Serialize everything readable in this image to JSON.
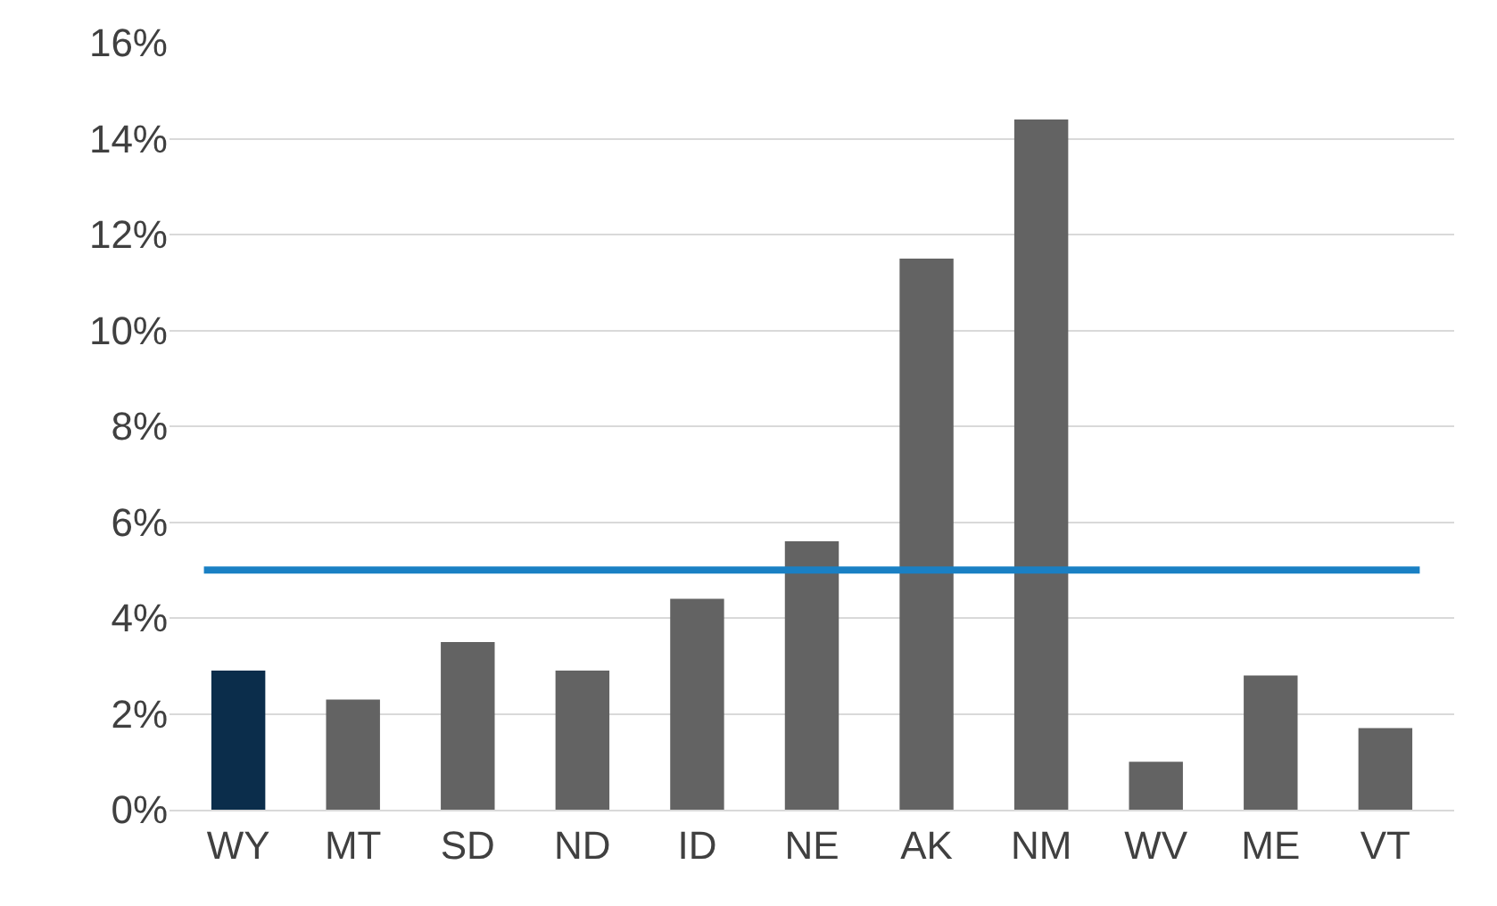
{
  "chart_data": {
    "type": "bar",
    "categories": [
      "WY",
      "MT",
      "SD",
      "ND",
      "ID",
      "NE",
      "AK",
      "NM",
      "WV",
      "ME",
      "VT"
    ],
    "values": [
      2.9,
      2.3,
      3.5,
      2.9,
      4.4,
      5.6,
      11.5,
      14.4,
      1.0,
      2.8,
      1.7
    ],
    "colors": [
      "#0b2d4b",
      "#636363",
      "#636363",
      "#636363",
      "#636363",
      "#636363",
      "#636363",
      "#636363",
      "#636363",
      "#636363",
      "#636363"
    ],
    "ylim": [
      0,
      16
    ],
    "yticks": [
      {
        "value": 0,
        "label": "0%"
      },
      {
        "value": 2,
        "label": "2%"
      },
      {
        "value": 4,
        "label": "4%"
      },
      {
        "value": 6,
        "label": "6%"
      },
      {
        "value": 8,
        "label": "8%"
      },
      {
        "value": 10,
        "label": "10%"
      },
      {
        "value": 12,
        "label": "12%"
      },
      {
        "value": 14,
        "label": "14%"
      },
      {
        "value": 16,
        "label": "16%"
      }
    ],
    "ref_lines": [
      {
        "axis": "y",
        "value": 5,
        "color": "#1a80c4"
      }
    ],
    "grid": "y"
  }
}
